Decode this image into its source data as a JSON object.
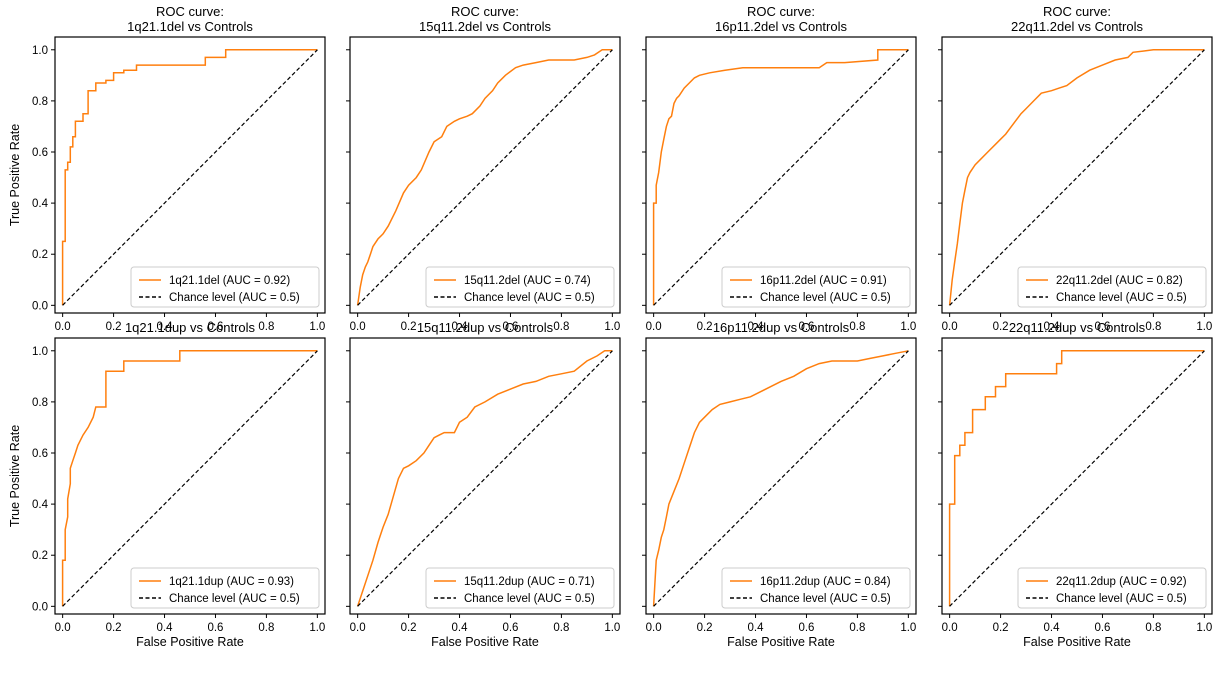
{
  "figure": {
    "colors": {
      "roc": "#ff7f0e",
      "chance": "#000000",
      "legend_border": "#cccccc"
    }
  },
  "chart_data": [
    {
      "type": "line",
      "title": [
        "ROC curve:",
        "1q21.1del vs Controls"
      ],
      "xlabel": "",
      "ylabel": "True Positive Rate",
      "xlim": [
        -0.03,
        1.03
      ],
      "ylim": [
        -0.03,
        1.05
      ],
      "xticks": [
        "0.0",
        "0.2",
        "0.4",
        "0.6",
        "0.8",
        "1.0"
      ],
      "yticks": [
        "0.0",
        "0.2",
        "0.4",
        "0.6",
        "0.8",
        "1.0"
      ],
      "legend_position": "lower-right",
      "series": [
        {
          "name": "1q21.1del (AUC = 0.92)",
          "style": "solid",
          "x": [
            0,
            0,
            0.01,
            0.01,
            0.02,
            0.02,
            0.03,
            0.03,
            0.04,
            0.04,
            0.05,
            0.05,
            0.08,
            0.08,
            0.1,
            0.1,
            0.13,
            0.13,
            0.17,
            0.17,
            0.2,
            0.2,
            0.24,
            0.24,
            0.29,
            0.29,
            0.56,
            0.56,
            0.64,
            0.64,
            1.0
          ],
          "y": [
            0,
            0.25,
            0.25,
            0.53,
            0.53,
            0.56,
            0.56,
            0.62,
            0.62,
            0.66,
            0.66,
            0.72,
            0.72,
            0.75,
            0.75,
            0.84,
            0.84,
            0.87,
            0.87,
            0.88,
            0.88,
            0.91,
            0.91,
            0.92,
            0.92,
            0.94,
            0.94,
            0.97,
            0.97,
            1.0,
            1.0
          ]
        },
        {
          "name": "Chance level (AUC = 0.5)",
          "style": "dashed",
          "x": [
            0,
            1
          ],
          "y": [
            0,
            1
          ]
        }
      ]
    },
    {
      "type": "line",
      "title": [
        "ROC curve:",
        "15q11.2del vs Controls"
      ],
      "xlabel": "",
      "ylabel": "",
      "xlim": [
        -0.03,
        1.03
      ],
      "ylim": [
        -0.03,
        1.05
      ],
      "xticks": [
        "0.0",
        "0.2",
        "0.4",
        "0.6",
        "0.8",
        "1.0"
      ],
      "yticks": [],
      "legend_position": "lower-right",
      "series": [
        {
          "name": "15q11.2del (AUC = 0.74)",
          "style": "solid",
          "x": [
            0,
            0.01,
            0.02,
            0.03,
            0.04,
            0.05,
            0.06,
            0.08,
            0.1,
            0.12,
            0.15,
            0.18,
            0.2,
            0.23,
            0.25,
            0.28,
            0.3,
            0.33,
            0.35,
            0.38,
            0.4,
            0.43,
            0.45,
            0.48,
            0.5,
            0.53,
            0.55,
            0.58,
            0.62,
            0.65,
            0.7,
            0.75,
            0.8,
            0.85,
            0.9,
            0.93,
            0.96,
            1.0
          ],
          "y": [
            0,
            0.07,
            0.12,
            0.15,
            0.17,
            0.2,
            0.23,
            0.26,
            0.28,
            0.31,
            0.37,
            0.44,
            0.47,
            0.5,
            0.53,
            0.6,
            0.64,
            0.66,
            0.7,
            0.72,
            0.73,
            0.74,
            0.75,
            0.78,
            0.81,
            0.84,
            0.87,
            0.9,
            0.93,
            0.94,
            0.95,
            0.96,
            0.96,
            0.96,
            0.97,
            0.98,
            1.0,
            1.0
          ]
        },
        {
          "name": "Chance level (AUC = 0.5)",
          "style": "dashed",
          "x": [
            0,
            1
          ],
          "y": [
            0,
            1
          ]
        }
      ]
    },
    {
      "type": "line",
      "title": [
        "ROC curve:",
        "16p11.2del vs Controls"
      ],
      "xlabel": "",
      "ylabel": "",
      "xlim": [
        -0.03,
        1.03
      ],
      "ylim": [
        -0.03,
        1.05
      ],
      "xticks": [
        "0.0",
        "0.2",
        "0.4",
        "0.6",
        "0.8",
        "1.0"
      ],
      "yticks": [],
      "legend_position": "lower-right",
      "series": [
        {
          "name": "16p11.2del (AUC = 0.91)",
          "style": "solid",
          "x": [
            0,
            0,
            0.01,
            0.01,
            0.02,
            0.03,
            0.04,
            0.05,
            0.06,
            0.07,
            0.08,
            0.09,
            0.1,
            0.12,
            0.14,
            0.16,
            0.18,
            0.22,
            0.28,
            0.35,
            0.5,
            0.65,
            0.68,
            0.75,
            0.88,
            0.88,
            1.0
          ],
          "y": [
            0,
            0.4,
            0.4,
            0.47,
            0.52,
            0.6,
            0.65,
            0.7,
            0.73,
            0.74,
            0.79,
            0.81,
            0.82,
            0.85,
            0.87,
            0.89,
            0.9,
            0.91,
            0.92,
            0.93,
            0.93,
            0.93,
            0.95,
            0.95,
            0.96,
            1.0,
            1.0
          ]
        },
        {
          "name": "Chance level (AUC = 0.5)",
          "style": "dashed",
          "x": [
            0,
            1
          ],
          "y": [
            0,
            1
          ]
        }
      ]
    },
    {
      "type": "line",
      "title": [
        "ROC curve:",
        "22q11.2del vs Controls"
      ],
      "xlabel": "",
      "ylabel": "",
      "xlim": [
        -0.03,
        1.03
      ],
      "ylim": [
        -0.03,
        1.05
      ],
      "xticks": [
        "0.0",
        "0.2",
        "0.4",
        "0.6",
        "0.8",
        "1.0"
      ],
      "yticks": [],
      "legend_position": "lower-right",
      "series": [
        {
          "name": "22q11.2del (AUC = 0.82)",
          "style": "solid",
          "x": [
            0,
            0.01,
            0.02,
            0.03,
            0.04,
            0.05,
            0.06,
            0.07,
            0.08,
            0.1,
            0.12,
            0.15,
            0.18,
            0.2,
            0.22,
            0.25,
            0.28,
            0.3,
            0.33,
            0.36,
            0.4,
            0.43,
            0.46,
            0.5,
            0.55,
            0.6,
            0.65,
            0.7,
            0.72,
            0.8,
            1.0
          ],
          "y": [
            0,
            0.1,
            0.17,
            0.24,
            0.32,
            0.4,
            0.45,
            0.5,
            0.52,
            0.55,
            0.57,
            0.6,
            0.63,
            0.65,
            0.67,
            0.71,
            0.75,
            0.77,
            0.8,
            0.83,
            0.84,
            0.85,
            0.86,
            0.89,
            0.92,
            0.94,
            0.96,
            0.97,
            0.99,
            1.0,
            1.0
          ]
        },
        {
          "name": "Chance level (AUC = 0.5)",
          "style": "dashed",
          "x": [
            0,
            1
          ],
          "y": [
            0,
            1
          ]
        }
      ]
    },
    {
      "type": "line",
      "title": [
        "1q21.1dup vs Controls"
      ],
      "xlabel": "False Positive Rate",
      "ylabel": "True Positive Rate",
      "xlim": [
        -0.03,
        1.03
      ],
      "ylim": [
        -0.03,
        1.05
      ],
      "xticks": [
        "0.0",
        "0.2",
        "0.4",
        "0.6",
        "0.8",
        "1.0"
      ],
      "yticks": [
        "0.0",
        "0.2",
        "0.4",
        "0.6",
        "0.8",
        "1.0"
      ],
      "legend_position": "lower-right",
      "series": [
        {
          "name": "1q21.1dup (AUC = 0.93)",
          "style": "solid",
          "x": [
            0,
            0,
            0.01,
            0.01,
            0.02,
            0.02,
            0.03,
            0.03,
            0.04,
            0.05,
            0.06,
            0.08,
            0.1,
            0.12,
            0.13,
            0.15,
            0.17,
            0.17,
            0.24,
            0.24,
            0.46,
            0.46,
            1.0
          ],
          "y": [
            0,
            0.18,
            0.18,
            0.3,
            0.35,
            0.42,
            0.48,
            0.54,
            0.57,
            0.6,
            0.63,
            0.67,
            0.7,
            0.74,
            0.78,
            0.78,
            0.78,
            0.92,
            0.92,
            0.96,
            0.96,
            1.0,
            1.0
          ]
        },
        {
          "name": "Chance level (AUC = 0.5)",
          "style": "dashed",
          "x": [
            0,
            1
          ],
          "y": [
            0,
            1
          ]
        }
      ]
    },
    {
      "type": "line",
      "title": [
        "15q11.2dup vs Controls"
      ],
      "xlabel": "False Positive Rate",
      "ylabel": "",
      "xlim": [
        -0.03,
        1.03
      ],
      "ylim": [
        -0.03,
        1.05
      ],
      "xticks": [
        "0.0",
        "0.2",
        "0.4",
        "0.6",
        "0.8",
        "1.0"
      ],
      "yticks": [],
      "legend_position": "lower-right",
      "series": [
        {
          "name": "15q11.2dup (AUC = 0.71)",
          "style": "solid",
          "x": [
            0,
            0.02,
            0.04,
            0.06,
            0.08,
            0.1,
            0.12,
            0.14,
            0.16,
            0.18,
            0.2,
            0.23,
            0.26,
            0.28,
            0.3,
            0.32,
            0.34,
            0.36,
            0.38,
            0.4,
            0.43,
            0.46,
            0.5,
            0.55,
            0.6,
            0.65,
            0.7,
            0.75,
            0.8,
            0.85,
            0.9,
            0.94,
            0.97,
            1.0
          ],
          "y": [
            0,
            0.06,
            0.12,
            0.18,
            0.25,
            0.31,
            0.36,
            0.43,
            0.5,
            0.54,
            0.55,
            0.57,
            0.6,
            0.63,
            0.66,
            0.67,
            0.68,
            0.68,
            0.68,
            0.72,
            0.74,
            0.78,
            0.8,
            0.83,
            0.85,
            0.87,
            0.88,
            0.9,
            0.91,
            0.92,
            0.96,
            0.98,
            1.0,
            1.0
          ]
        },
        {
          "name": "Chance level (AUC = 0.5)",
          "style": "dashed",
          "x": [
            0,
            1
          ],
          "y": [
            0,
            1
          ]
        }
      ]
    },
    {
      "type": "line",
      "title": [
        "16p11.2dup vs Controls"
      ],
      "xlabel": "False Positive Rate",
      "ylabel": "",
      "xlim": [
        -0.03,
        1.03
      ],
      "ylim": [
        -0.03,
        1.05
      ],
      "xticks": [
        "0.0",
        "0.2",
        "0.4",
        "0.6",
        "0.8",
        "1.0"
      ],
      "yticks": [],
      "legend_position": "lower-right",
      "series": [
        {
          "name": "16p11.2dup (AUC = 0.84)",
          "style": "solid",
          "x": [
            0,
            0.01,
            0.02,
            0.03,
            0.04,
            0.05,
            0.06,
            0.08,
            0.1,
            0.12,
            0.14,
            0.16,
            0.18,
            0.2,
            0.23,
            0.26,
            0.3,
            0.34,
            0.38,
            0.42,
            0.46,
            0.5,
            0.55,
            0.6,
            0.65,
            0.7,
            0.75,
            0.8,
            0.85,
            0.9,
            0.95,
            1.0
          ],
          "y": [
            0,
            0.18,
            0.22,
            0.27,
            0.3,
            0.35,
            0.4,
            0.45,
            0.5,
            0.56,
            0.62,
            0.68,
            0.72,
            0.74,
            0.77,
            0.79,
            0.8,
            0.81,
            0.82,
            0.84,
            0.86,
            0.88,
            0.9,
            0.93,
            0.95,
            0.96,
            0.96,
            0.96,
            0.97,
            0.98,
            0.99,
            1.0
          ]
        },
        {
          "name": "Chance level (AUC = 0.5)",
          "style": "dashed",
          "x": [
            0,
            1
          ],
          "y": [
            0,
            1
          ]
        }
      ]
    },
    {
      "type": "line",
      "title": [
        "22q11.2dup vs Controls"
      ],
      "xlabel": "False Positive Rate",
      "ylabel": "",
      "xlim": [
        -0.03,
        1.03
      ],
      "ylim": [
        -0.03,
        1.05
      ],
      "xticks": [
        "0.0",
        "0.2",
        "0.4",
        "0.6",
        "0.8",
        "1.0"
      ],
      "yticks": [],
      "legend_position": "lower-right",
      "series": [
        {
          "name": "22q11.2dup (AUC = 0.92)",
          "style": "solid",
          "x": [
            0,
            0,
            0.02,
            0.02,
            0.04,
            0.04,
            0.06,
            0.06,
            0.09,
            0.09,
            0.14,
            0.14,
            0.18,
            0.18,
            0.22,
            0.22,
            0.42,
            0.42,
            0.44,
            0.44,
            1.0
          ],
          "y": [
            0,
            0.4,
            0.4,
            0.59,
            0.59,
            0.63,
            0.63,
            0.68,
            0.68,
            0.77,
            0.77,
            0.82,
            0.82,
            0.86,
            0.86,
            0.91,
            0.91,
            0.95,
            0.95,
            1.0,
            1.0
          ]
        },
        {
          "name": "Chance level (AUC = 0.5)",
          "style": "dashed",
          "x": [
            0,
            1
          ],
          "y": [
            0,
            1
          ]
        }
      ]
    }
  ]
}
